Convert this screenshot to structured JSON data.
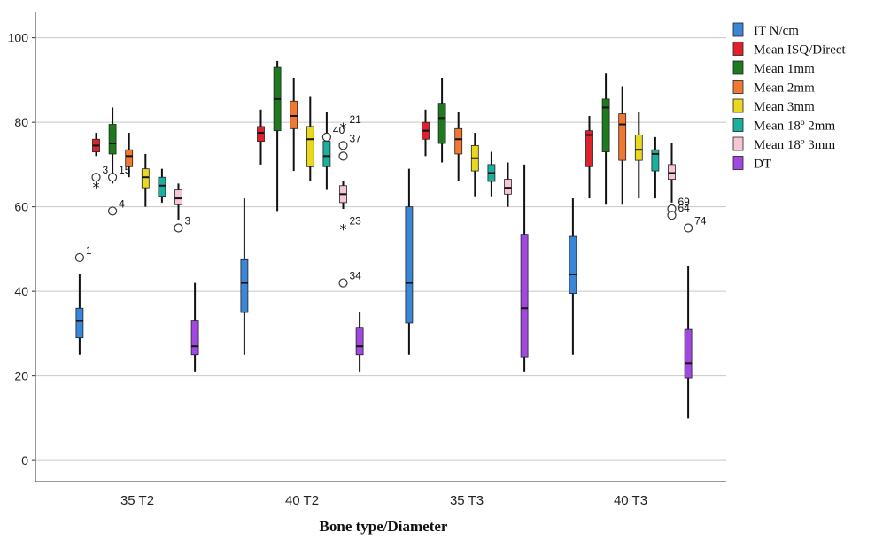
{
  "chart_data": {
    "type": "boxplot",
    "title": "",
    "xlabel": "Bone type/Diameter",
    "ylabel": "",
    "ylim": [
      -5,
      106
    ],
    "yticks": [
      0,
      20,
      40,
      60,
      80,
      100
    ],
    "grid": "horizontal",
    "legend_position": "top-right",
    "categories": [
      "35 T2",
      "40 T2",
      "35 T3",
      "40 T3"
    ],
    "series": [
      {
        "name": "IT N/cm",
        "color": "#3a87d8",
        "boxes": [
          {
            "min": 25,
            "q1": 29,
            "median": 33,
            "q3": 36,
            "max": 44
          },
          {
            "min": 25,
            "q1": 35,
            "median": 42,
            "q3": 47.5,
            "max": 62
          },
          {
            "min": 25,
            "q1": 32.5,
            "median": 42,
            "q3": 60,
            "max": 69
          },
          {
            "min": 25,
            "q1": 39.5,
            "median": 44,
            "q3": 53,
            "max": 62
          }
        ]
      },
      {
        "name": "Mean ISQ/Direct",
        "color": "#e0202d",
        "boxes": [
          {
            "min": 72,
            "q1": 73,
            "median": 74.5,
            "q3": 76,
            "max": 77.5
          },
          {
            "min": 70,
            "q1": 75.5,
            "median": 77.5,
            "q3": 79,
            "max": 83
          },
          {
            "min": 72,
            "q1": 76,
            "median": 78,
            "q3": 80,
            "max": 83
          },
          {
            "min": 62,
            "q1": 69.5,
            "median": 77,
            "q3": 78,
            "max": 81.5
          }
        ]
      },
      {
        "name": "Mean 1mm",
        "color": "#1e7a1e",
        "boxes": [
          {
            "min": 65.5,
            "q1": 72.5,
            "median": 75,
            "q3": 79.5,
            "max": 83.5
          },
          {
            "min": 59,
            "q1": 78,
            "median": 85.5,
            "q3": 93,
            "max": 94.5
          },
          {
            "min": 70.5,
            "q1": 75,
            "median": 81,
            "q3": 84.5,
            "max": 90.5
          },
          {
            "min": 60.5,
            "q1": 73,
            "median": 83.5,
            "q3": 85.5,
            "max": 91.5
          }
        ]
      },
      {
        "name": "Mean 2mm",
        "color": "#f07830",
        "boxes": [
          {
            "min": 67,
            "q1": 69.5,
            "median": 72,
            "q3": 73.5,
            "max": 77.5
          },
          {
            "min": 68.5,
            "q1": 78.5,
            "median": 81.5,
            "q3": 85,
            "max": 90.5
          },
          {
            "min": 66,
            "q1": 72.5,
            "median": 76,
            "q3": 78.5,
            "max": 82.5
          },
          {
            "min": 60.5,
            "q1": 71,
            "median": 79.5,
            "q3": 82,
            "max": 88.5
          }
        ]
      },
      {
        "name": "Mean 3mm",
        "color": "#e8d820",
        "boxes": [
          {
            "min": 60,
            "q1": 64.5,
            "median": 67,
            "q3": 69,
            "max": 72.5
          },
          {
            "min": 66,
            "q1": 69.5,
            "median": 76,
            "q3": 79,
            "max": 86
          },
          {
            "min": 62.5,
            "q1": 68.5,
            "median": 71.5,
            "q3": 74.5,
            "max": 77.5
          },
          {
            "min": 62,
            "q1": 71,
            "median": 73.5,
            "q3": 77,
            "max": 82.5
          }
        ]
      },
      {
        "name": "Mean 18º 2mm",
        "color": "#1ab0a0",
        "boxes": [
          {
            "min": 61,
            "q1": 62.5,
            "median": 65,
            "q3": 67,
            "max": 69
          },
          {
            "min": 64,
            "q1": 69.5,
            "median": 72,
            "q3": 75.5,
            "max": 82.5
          },
          {
            "min": 62.5,
            "q1": 66,
            "median": 68,
            "q3": 70,
            "max": 73
          },
          {
            "min": 62,
            "q1": 68.5,
            "median": 72.5,
            "q3": 73.5,
            "max": 76.5
          }
        ]
      },
      {
        "name": "Mean 18º 3mm",
        "color": "#f7c6d4",
        "boxes": [
          {
            "min": 57,
            "q1": 60.5,
            "median": 62,
            "q3": 64,
            "max": 65.5
          },
          {
            "min": 59.5,
            "q1": 61,
            "median": 63,
            "q3": 65,
            "max": 66
          },
          {
            "min": 60,
            "q1": 63,
            "median": 64.5,
            "q3": 66.5,
            "max": 70.5
          },
          {
            "min": 61,
            "q1": 66.5,
            "median": 68,
            "q3": 70,
            "max": 75
          }
        ]
      },
      {
        "name": "DT",
        "color": "#a048e0",
        "boxes": [
          {
            "min": 21,
            "q1": 25,
            "median": 27,
            "q3": 33,
            "max": 42
          },
          {
            "min": 21,
            "q1": 25,
            "median": 27,
            "q3": 31.5,
            "max": 35
          },
          {
            "min": 21,
            "q1": 24.5,
            "median": 36,
            "q3": 53.5,
            "max": 70
          },
          {
            "min": 10,
            "q1": 19.5,
            "median": 23,
            "q3": 31,
            "max": 46
          }
        ]
      }
    ],
    "outliers": [
      {
        "category": "35 T2",
        "series": "IT N/cm",
        "y": 48,
        "marker": "circle",
        "label": "1"
      },
      {
        "category": "35 T2",
        "series": "Mean ISQ/Direct",
        "y": 67,
        "marker": "circle",
        "label": "3"
      },
      {
        "category": "35 T2",
        "series": "Mean ISQ/Direct",
        "y": 65,
        "marker": "star",
        "label": ""
      },
      {
        "category": "35 T2",
        "series": "Mean 1mm",
        "y": 67,
        "marker": "circle",
        "label": "15"
      },
      {
        "category": "35 T2",
        "series": "Mean 1mm",
        "y": 59,
        "marker": "circle",
        "label": "4"
      },
      {
        "category": "35 T2",
        "series": "Mean 18º 3mm",
        "y": 55,
        "marker": "circle",
        "label": "3"
      },
      {
        "category": "40 T2",
        "series": "Mean 18º 2mm",
        "y": 76.5,
        "marker": "circle",
        "label": "40"
      },
      {
        "category": "40 T2",
        "series": "Mean 18º 3mm",
        "y": 79,
        "marker": "star",
        "label": "21"
      },
      {
        "category": "40 T2",
        "series": "Mean 18º 3mm",
        "y": 74.5,
        "marker": "circle",
        "label": "37"
      },
      {
        "category": "40 T2",
        "series": "Mean 18º 3mm",
        "y": 72,
        "marker": "circle",
        "label": ""
      },
      {
        "category": "40 T2",
        "series": "Mean 18º 3mm",
        "y": 55,
        "marker": "star",
        "label": "23"
      },
      {
        "category": "40 T2",
        "series": "Mean 18º 3mm",
        "y": 42,
        "marker": "circle",
        "label": "34"
      },
      {
        "category": "40 T3",
        "series": "Mean 18º 3mm",
        "y": 59.5,
        "marker": "circle",
        "label": "69"
      },
      {
        "category": "40 T3",
        "series": "Mean 18º 3mm",
        "y": 58,
        "marker": "circle",
        "label": "64"
      },
      {
        "category": "40 T3",
        "series": "DT",
        "y": 55,
        "marker": "circle",
        "label": "74"
      }
    ]
  }
}
